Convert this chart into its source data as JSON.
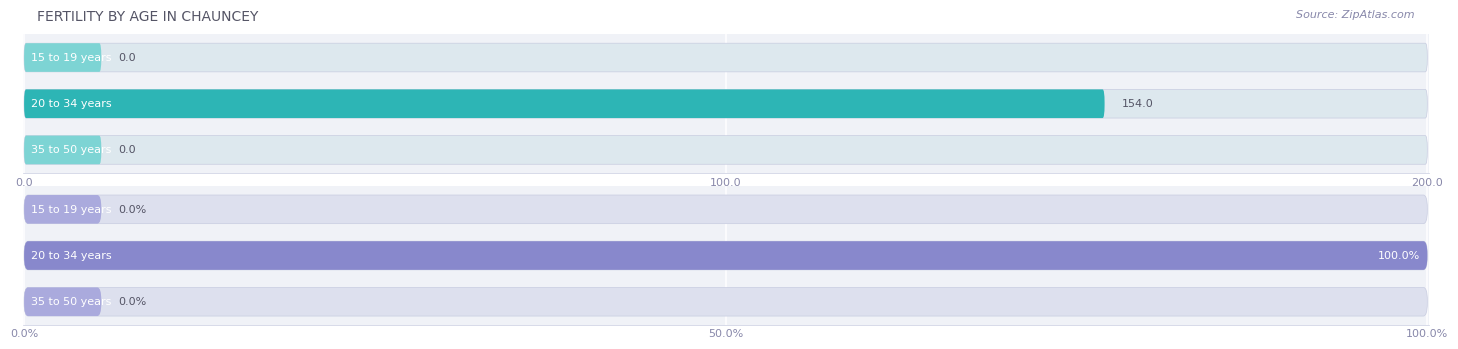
{
  "title": "FERTILITY BY AGE IN CHAUNCEY",
  "source": "Source: ZipAtlas.com",
  "top_chart": {
    "categories": [
      "15 to 19 years",
      "20 to 34 years",
      "35 to 50 years"
    ],
    "values": [
      0.0,
      154.0,
      0.0
    ],
    "xlim": [
      0,
      200
    ],
    "xticks": [
      0.0,
      100.0,
      200.0
    ],
    "xtick_labels": [
      "0.0",
      "100.0",
      "200.0"
    ],
    "bar_color": "#2db5b5",
    "bar_bg_color": "#dde8ee",
    "small_bar_color": "#7dd4d4",
    "value_labels": [
      "0.0",
      "154.0",
      "0.0"
    ]
  },
  "bottom_chart": {
    "categories": [
      "15 to 19 years",
      "20 to 34 years",
      "35 to 50 years"
    ],
    "values": [
      0.0,
      100.0,
      0.0
    ],
    "xlim": [
      0,
      100
    ],
    "xticks": [
      0.0,
      50.0,
      100.0
    ],
    "xtick_labels": [
      "0.0%",
      "50.0%",
      "100.0%"
    ],
    "bar_color": "#8888cc",
    "bar_bg_color": "#dde0ee",
    "small_bar_color": "#aaaadd",
    "value_labels": [
      "0.0%",
      "100.0%",
      "0.0%"
    ]
  },
  "title_color": "#555566",
  "label_color": "#555566",
  "tick_color": "#8888aa",
  "source_color": "#8888aa",
  "title_fontsize": 10,
  "label_fontsize": 8,
  "tick_fontsize": 8,
  "source_fontsize": 8
}
